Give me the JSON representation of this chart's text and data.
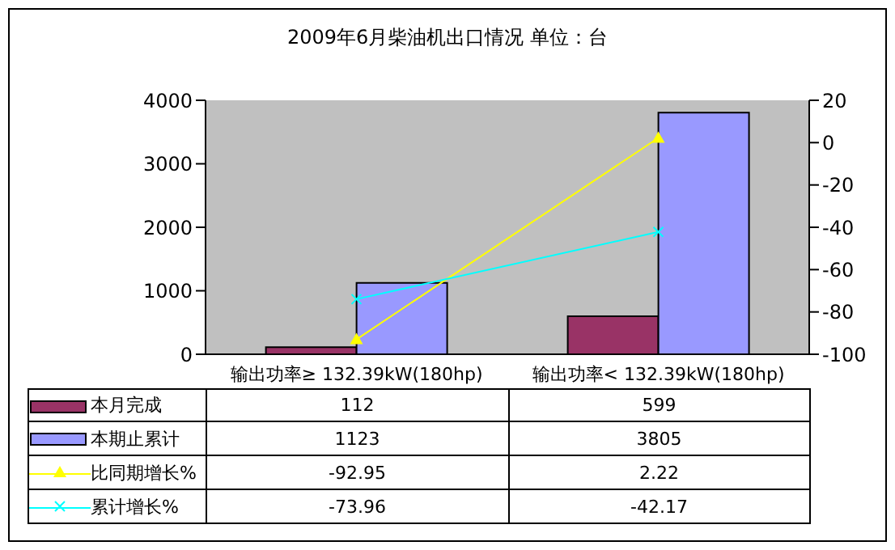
{
  "chart_data": {
    "type": "bar",
    "title": "2009年6月柴油机出口情况 单位：台",
    "categories": [
      "输出功率≥ 132.39kW(180hp)",
      "输出功率< 132.39kW(180hp)"
    ],
    "series": [
      {
        "name": "本月完成",
        "color": "#993366",
        "values": [
          112,
          599
        ]
      },
      {
        "name": "本期止累计",
        "color": "#9999ff",
        "values": [
          1123,
          3805
        ]
      },
      {
        "name": "比同期增长%",
        "type": "line",
        "axis": "y2",
        "marker": "triangle",
        "color": "#ffff00",
        "values": [
          -92.95,
          2.22
        ]
      },
      {
        "name": "累计增长%",
        "type": "line",
        "axis": "y2",
        "marker": "cross",
        "color": "#00ffff",
        "values": [
          -73.96,
          -42.17
        ]
      }
    ],
    "ylim": [
      0,
      4000
    ],
    "yticks": [
      0,
      1000,
      2000,
      3000,
      4000
    ],
    "y2lim": [
      -100,
      20
    ],
    "y2ticks": [
      -100,
      -80,
      -60,
      -40,
      -20,
      0,
      20
    ],
    "grid": false,
    "legend": "bottom",
    "data_labels": true
  }
}
